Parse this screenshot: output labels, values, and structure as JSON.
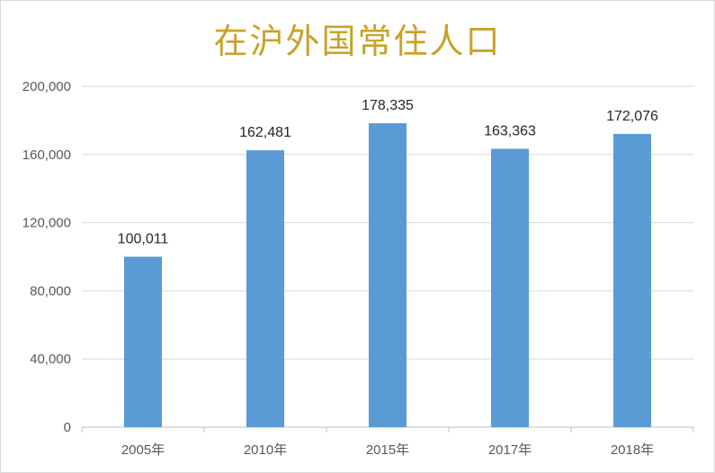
{
  "chart_data": {
    "type": "bar",
    "title": "在沪外国常住人口",
    "categories": [
      "2005年",
      "2010年",
      "2015年",
      "2017年",
      "2018年"
    ],
    "values": [
      100011,
      162481,
      178335,
      163363,
      172076
    ],
    "data_labels": [
      "100,011",
      "162,481",
      "178,335",
      "163,363",
      "172,076"
    ],
    "y_ticks": [
      "0",
      "40,000",
      "80,000",
      "120,000",
      "160,000",
      "200,000"
    ],
    "ylim": [
      0,
      200000
    ],
    "grid": true,
    "legend": "none",
    "bar_color": "#5b9bd5",
    "title_color": "#c9a227"
  }
}
